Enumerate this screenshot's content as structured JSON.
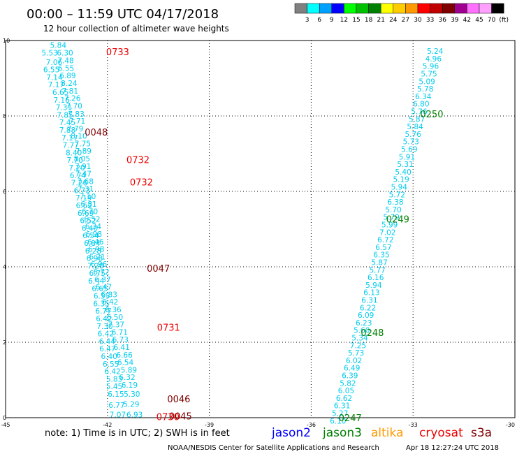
{
  "header": {
    "title": "00:00 – 11:59 UTC 04/17/2018",
    "subtitle": "12 hour collection of altimeter wave heights"
  },
  "legend_scale": {
    "colors": [
      "#808080",
      "#00ffff",
      "#00a0ff",
      "#0000ff",
      "#00ff00",
      "#00c000",
      "#008000",
      "#ffff00",
      "#ffcc00",
      "#ff9900",
      "#ff0000",
      "#c00000",
      "#800000",
      "#a00090",
      "#ff70ff",
      "#ffa0ff",
      "#000000"
    ],
    "labels": [
      "3",
      "6",
      "9",
      "12",
      "15",
      "18",
      "21",
      "24",
      "27",
      "30",
      "33",
      "36",
      "39",
      "42",
      "45",
      "70",
      "(ft)"
    ]
  },
  "chart_data": {
    "type": "scatter",
    "xlim": [
      -45,
      -30
    ],
    "ylim": [
      0,
      10
    ],
    "x_ticks": [
      "-45",
      "-42",
      "-39",
      "-36",
      "-33",
      "-30"
    ],
    "y_ticks": [
      "0",
      "2",
      "4",
      "6",
      "8",
      "10"
    ],
    "grid": true,
    "swh_color": "#00ccee",
    "tracks": [
      {
        "name": "left",
        "points": [
          {
            "x": -43.45,
            "y": 9.88,
            "v": "5.84"
          },
          {
            "x": -43.7,
            "y": 9.68,
            "v": "5.53"
          },
          {
            "x": -43.25,
            "y": 9.68,
            "v": "6.30"
          },
          {
            "x": -43.57,
            "y": 9.43,
            "v": "7.06"
          },
          {
            "x": -43.23,
            "y": 9.47,
            "v": "7.48"
          },
          {
            "x": -43.65,
            "y": 9.23,
            "v": "6.55"
          },
          {
            "x": -43.22,
            "y": 9.27,
            "v": "6.55"
          },
          {
            "x": -43.56,
            "y": 9.03,
            "v": "7.14"
          },
          {
            "x": -43.17,
            "y": 9.07,
            "v": "6.89"
          },
          {
            "x": -43.51,
            "y": 8.83,
            "v": "7.17"
          },
          {
            "x": -43.13,
            "y": 8.87,
            "v": "8.24"
          },
          {
            "x": -43.38,
            "y": 8.63,
            "v": "6.65"
          },
          {
            "x": -43.1,
            "y": 8.67,
            "v": "7.81"
          },
          {
            "x": -43.35,
            "y": 8.43,
            "v": "7.16"
          },
          {
            "x": -43.03,
            "y": 8.47,
            "v": "7.26"
          },
          {
            "x": -43.28,
            "y": 8.23,
            "v": "7.31"
          },
          {
            "x": -42.98,
            "y": 8.27,
            "v": "7.70"
          },
          {
            "x": -43.25,
            "y": 8.03,
            "v": "7.85"
          },
          {
            "x": -42.92,
            "y": 8.06,
            "v": "7.83"
          },
          {
            "x": -43.18,
            "y": 7.83,
            "v": "7.45"
          },
          {
            "x": -42.89,
            "y": 7.87,
            "v": "7.71"
          },
          {
            "x": -43.18,
            "y": 7.63,
            "v": "7.88"
          },
          {
            "x": -42.95,
            "y": 7.67,
            "v": "7.79"
          },
          {
            "x": -43.11,
            "y": 7.43,
            "v": "7.17"
          },
          {
            "x": -42.84,
            "y": 7.47,
            "v": "8.10"
          },
          {
            "x": -43.08,
            "y": 7.23,
            "v": "7.77"
          },
          {
            "x": -42.73,
            "y": 7.27,
            "v": "7.75"
          },
          {
            "x": -42.99,
            "y": 7.03,
            "v": "8.40"
          },
          {
            "x": -42.71,
            "y": 7.07,
            "v": "7.89"
          },
          {
            "x": -42.96,
            "y": 6.83,
            "v": "7.70"
          },
          {
            "x": -42.75,
            "y": 6.87,
            "v": "8.05"
          },
          {
            "x": -42.9,
            "y": 6.63,
            "v": "7.20"
          },
          {
            "x": -42.72,
            "y": 6.67,
            "v": "7.91"
          },
          {
            "x": -42.87,
            "y": 6.43,
            "v": "6.74"
          },
          {
            "x": -42.71,
            "y": 6.47,
            "v": "7.47"
          },
          {
            "x": -42.83,
            "y": 6.23,
            "v": "7.26"
          },
          {
            "x": -42.65,
            "y": 6.27,
            "v": "7.68"
          },
          {
            "x": -42.75,
            "y": 6.03,
            "v": "6.73"
          },
          {
            "x": -42.64,
            "y": 6.07,
            "v": "7.31"
          },
          {
            "x": -42.7,
            "y": 5.83,
            "v": "7.19"
          },
          {
            "x": -42.58,
            "y": 5.87,
            "v": "7.10"
          },
          {
            "x": -42.69,
            "y": 5.63,
            "v": "6.62"
          },
          {
            "x": -42.55,
            "y": 5.67,
            "v": "6.81"
          },
          {
            "x": -42.64,
            "y": 5.43,
            "v": "6.69"
          },
          {
            "x": -42.52,
            "y": 5.47,
            "v": "6.70"
          },
          {
            "x": -42.57,
            "y": 5.23,
            "v": "6.52"
          },
          {
            "x": -42.45,
            "y": 5.27,
            "v": "6.52"
          },
          {
            "x": -42.52,
            "y": 5.03,
            "v": "6.40"
          },
          {
            "x": -42.42,
            "y": 5.07,
            "v": "6.34"
          },
          {
            "x": -42.49,
            "y": 4.83,
            "v": "6.54"
          },
          {
            "x": -42.4,
            "y": 4.87,
            "v": "6.98"
          },
          {
            "x": -42.45,
            "y": 4.63,
            "v": "6.84"
          },
          {
            "x": -42.35,
            "y": 4.67,
            "v": "6.46"
          },
          {
            "x": -42.42,
            "y": 4.43,
            "v": "6.28"
          },
          {
            "x": -42.33,
            "y": 4.47,
            "v": "6.98"
          },
          {
            "x": -42.38,
            "y": 4.23,
            "v": "6.98"
          },
          {
            "x": -42.3,
            "y": 4.27,
            "v": "6.21"
          },
          {
            "x": -42.35,
            "y": 4.03,
            "v": "7.20"
          },
          {
            "x": -42.25,
            "y": 4.07,
            "v": "6.96"
          },
          {
            "x": -42.3,
            "y": 3.83,
            "v": "6.75"
          },
          {
            "x": -42.18,
            "y": 3.87,
            "v": "6.72"
          },
          {
            "x": -42.33,
            "y": 3.63,
            "v": "6.44"
          },
          {
            "x": -42.14,
            "y": 3.67,
            "v": "6.37"
          },
          {
            "x": -42.22,
            "y": 3.43,
            "v": "6.65"
          },
          {
            "x": -42.11,
            "y": 3.47,
            "v": "6.47"
          },
          {
            "x": -42.17,
            "y": 3.23,
            "v": "6.55"
          },
          {
            "x": -41.95,
            "y": 3.27,
            "v": "6.83"
          },
          {
            "x": -42.18,
            "y": 3.03,
            "v": "6.35"
          },
          {
            "x": -41.92,
            "y": 3.07,
            "v": "6.42"
          },
          {
            "x": -42.12,
            "y": 2.83,
            "v": "6.77"
          },
          {
            "x": -41.83,
            "y": 2.87,
            "v": "6.36"
          },
          {
            "x": -42.1,
            "y": 2.63,
            "v": "6.42"
          },
          {
            "x": -41.78,
            "y": 2.67,
            "v": "6.50"
          },
          {
            "x": -42.08,
            "y": 2.43,
            "v": "7.30"
          },
          {
            "x": -41.74,
            "y": 2.47,
            "v": "7.37"
          },
          {
            "x": -42.05,
            "y": 2.23,
            "v": "6.42"
          },
          {
            "x": -41.64,
            "y": 2.27,
            "v": "6.71"
          },
          {
            "x": -42.01,
            "y": 2.03,
            "v": "6.44"
          },
          {
            "x": -41.62,
            "y": 2.07,
            "v": "6.73"
          },
          {
            "x": -42.0,
            "y": 1.83,
            "v": "6.47"
          },
          {
            "x": -41.58,
            "y": 1.87,
            "v": "6.41"
          },
          {
            "x": -41.95,
            "y": 1.63,
            "v": "6.40"
          },
          {
            "x": -41.5,
            "y": 1.67,
            "v": "6.66"
          },
          {
            "x": -41.9,
            "y": 1.43,
            "v": "6.55"
          },
          {
            "x": -41.47,
            "y": 1.47,
            "v": "6.54"
          },
          {
            "x": -41.85,
            "y": 1.23,
            "v": "6.42"
          },
          {
            "x": -41.37,
            "y": 1.27,
            "v": "5.89"
          },
          {
            "x": -41.8,
            "y": 1.03,
            "v": "5.83"
          },
          {
            "x": -41.42,
            "y": 1.07,
            "v": "6.32"
          },
          {
            "x": -41.8,
            "y": 0.83,
            "v": "5.45"
          },
          {
            "x": -41.35,
            "y": 0.87,
            "v": "6.19"
          },
          {
            "x": -41.75,
            "y": 0.63,
            "v": "6.15"
          },
          {
            "x": -41.28,
            "y": 0.63,
            "v": "5.30"
          },
          {
            "x": -41.73,
            "y": 0.33,
            "v": "6.77"
          },
          {
            "x": -41.3,
            "y": 0.36,
            "v": "5.29"
          },
          {
            "x": -41.7,
            "y": 0.08,
            "v": "7.07"
          },
          {
            "x": -41.2,
            "y": 0.08,
            "v": "6.93"
          }
        ]
      },
      {
        "name": "right",
        "points": [
          {
            "x": -32.35,
            "y": 9.72,
            "v": "5.24"
          },
          {
            "x": -32.4,
            "y": 9.52,
            "v": "4.96"
          },
          {
            "x": -32.48,
            "y": 9.32,
            "v": "5.96"
          },
          {
            "x": -32.53,
            "y": 9.12,
            "v": "5.75"
          },
          {
            "x": -32.59,
            "y": 8.92,
            "v": "5.09"
          },
          {
            "x": -32.64,
            "y": 8.72,
            "v": "5.78"
          },
          {
            "x": -32.7,
            "y": 8.52,
            "v": "6.34"
          },
          {
            "x": -32.76,
            "y": 8.32,
            "v": "6.80"
          },
          {
            "x": -32.82,
            "y": 8.12,
            "v": "5.76"
          },
          {
            "x": -32.89,
            "y": 7.92,
            "v": "5.87"
          },
          {
            "x": -32.94,
            "y": 7.72,
            "v": "5.84"
          },
          {
            "x": -33.0,
            "y": 7.52,
            "v": "5.76"
          },
          {
            "x": -33.06,
            "y": 7.32,
            "v": "5.73"
          },
          {
            "x": -33.11,
            "y": 7.12,
            "v": "5.69"
          },
          {
            "x": -33.18,
            "y": 6.92,
            "v": "5.91"
          },
          {
            "x": -33.23,
            "y": 6.72,
            "v": "5.31"
          },
          {
            "x": -33.29,
            "y": 6.52,
            "v": "5.40"
          },
          {
            "x": -33.35,
            "y": 6.32,
            "v": "5.19"
          },
          {
            "x": -33.41,
            "y": 6.12,
            "v": "5.94"
          },
          {
            "x": -33.47,
            "y": 5.92,
            "v": "5.72"
          },
          {
            "x": -33.52,
            "y": 5.72,
            "v": "6.38"
          },
          {
            "x": -33.58,
            "y": 5.52,
            "v": "5.70"
          },
          {
            "x": -33.64,
            "y": 5.32,
            "v": "5.79"
          },
          {
            "x": -33.69,
            "y": 5.12,
            "v": "5.99"
          },
          {
            "x": -33.75,
            "y": 4.92,
            "v": "7.02"
          },
          {
            "x": -33.81,
            "y": 4.72,
            "v": "6.72"
          },
          {
            "x": -33.87,
            "y": 4.52,
            "v": "6.57"
          },
          {
            "x": -33.93,
            "y": 4.32,
            "v": "6.35"
          },
          {
            "x": -33.99,
            "y": 4.12,
            "v": "5.87"
          },
          {
            "x": -34.05,
            "y": 3.92,
            "v": "5.77"
          },
          {
            "x": -34.1,
            "y": 3.72,
            "v": "6.16"
          },
          {
            "x": -34.16,
            "y": 3.52,
            "v": "5.94"
          },
          {
            "x": -34.22,
            "y": 3.32,
            "v": "6.13"
          },
          {
            "x": -34.28,
            "y": 3.12,
            "v": "6.31"
          },
          {
            "x": -34.33,
            "y": 2.92,
            "v": "6.22"
          },
          {
            "x": -34.39,
            "y": 2.72,
            "v": "6.09"
          },
          {
            "x": -34.45,
            "y": 2.52,
            "v": "6.23"
          },
          {
            "x": -34.51,
            "y": 2.32,
            "v": "5.60"
          },
          {
            "x": -34.57,
            "y": 2.12,
            "v": "5.34"
          },
          {
            "x": -34.62,
            "y": 1.92,
            "v": "7.25"
          },
          {
            "x": -34.68,
            "y": 1.72,
            "v": "5.73"
          },
          {
            "x": -34.74,
            "y": 1.52,
            "v": "6.02"
          },
          {
            "x": -34.8,
            "y": 1.32,
            "v": "6.49"
          },
          {
            "x": -34.86,
            "y": 1.12,
            "v": "6.39"
          },
          {
            "x": -34.92,
            "y": 0.92,
            "v": "5.82"
          },
          {
            "x": -34.97,
            "y": 0.72,
            "v": "6.05"
          },
          {
            "x": -35.03,
            "y": 0.52,
            "v": "6.62"
          },
          {
            "x": -35.09,
            "y": 0.32,
            "v": "6.31"
          },
          {
            "x": -35.15,
            "y": 0.12,
            "v": "5.27"
          },
          {
            "x": -35.21,
            "y": -0.08,
            "v": "6.10"
          }
        ]
      }
    ],
    "time_labels": [
      {
        "text": "0733",
        "x": -41.7,
        "y": 9.7,
        "color": "#ee0000"
      },
      {
        "text": "0048",
        "x": -42.33,
        "y": 7.57,
        "color": "#800000"
      },
      {
        "text": "0732",
        "x": -41.1,
        "y": 6.84,
        "color": "#ee0000"
      },
      {
        "text": "0732",
        "x": -41.0,
        "y": 6.25,
        "color": "#ee0000"
      },
      {
        "text": "0047",
        "x": -40.5,
        "y": 3.96,
        "color": "#800000"
      },
      {
        "text": "0731",
        "x": -40.2,
        "y": 2.4,
        "color": "#ee0000"
      },
      {
        "text": "0046",
        "x": -39.9,
        "y": 0.5,
        "color": "#800000"
      },
      {
        "text": "0045",
        "x": -39.85,
        "y": 0.05,
        "color": "#800000"
      },
      {
        "text": "0730",
        "x": -40.22,
        "y": 0.03,
        "color": "#ee0000"
      },
      {
        "text": "0250",
        "x": -32.45,
        "y": 8.06,
        "color": "#008000"
      },
      {
        "text": "0249",
        "x": -33.45,
        "y": 5.27,
        "color": "#008000"
      },
      {
        "text": "0248",
        "x": -34.2,
        "y": 2.26,
        "color": "#008000"
      },
      {
        "text": "0247",
        "x": -34.85,
        "y": 0.0,
        "color": "#008000"
      }
    ]
  },
  "footer": {
    "note": "note: 1) Time is in UTC; 2) SWH is in feet",
    "satellites": [
      {
        "name": "jason2",
        "color": "#0000ff"
      },
      {
        "name": "jason3",
        "color": "#008000"
      },
      {
        "name": "altika",
        "color": "#ff9900"
      },
      {
        "name": "cryosat",
        "color": "#ee0000"
      },
      {
        "name": "s3a",
        "color": "#800000"
      }
    ],
    "credit": "NOAA/NESDIS Center for Satellite Applications and Research",
    "timestamp": "Apr 18 12:27:24 UTC 2018"
  }
}
